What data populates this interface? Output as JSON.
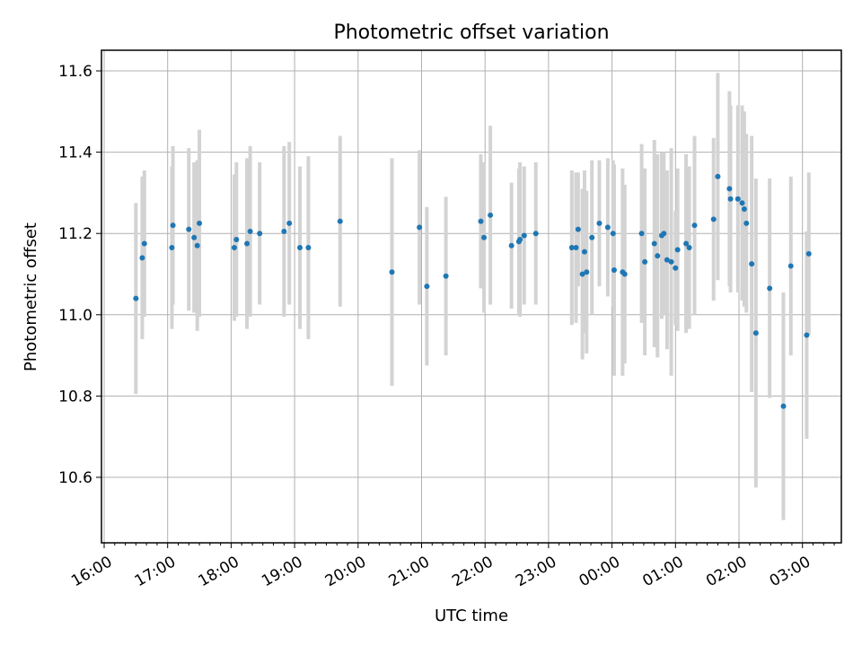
{
  "chart_data": {
    "type": "scatter",
    "title": "Photometric offset variation",
    "xlabel": "UTC time",
    "ylabel": "Photometric offset",
    "x_tick_labels": [
      "16:00",
      "17:00",
      "18:00",
      "19:00",
      "20:00",
      "21:00",
      "22:00",
      "23:00",
      "00:00",
      "01:00",
      "02:00",
      "03:00"
    ],
    "x_start_label": "16:00",
    "y_ticks": [
      10.6,
      10.8,
      11.0,
      11.2,
      11.4,
      11.6
    ],
    "y_tick_labels": [
      "10.6",
      "10.8",
      "11.0",
      "11.2",
      "11.4",
      "11.6"
    ],
    "ylim": [
      10.45,
      11.65
    ],
    "grid": true,
    "colors": {
      "point": "#1f77b4",
      "errorbar": "#d3d3d3",
      "grid": "#b0b0b0",
      "axes": "#000000"
    },
    "series": [
      {
        "x": [
          "16:30",
          "16:36",
          "16:38",
          "17:04",
          "17:05",
          "17:20",
          "17:25",
          "17:28",
          "17:30",
          "18:03",
          "18:05",
          "18:15",
          "18:18",
          "18:27",
          "18:50",
          "18:55",
          "19:05",
          "19:13",
          "19:43",
          "20:32",
          "20:58",
          "21:05",
          "21:23",
          "21:56",
          "21:59",
          "22:05",
          "22:25",
          "22:32",
          "22:33",
          "22:37",
          "22:48",
          "23:22",
          "23:26",
          "23:28",
          "23:32",
          "23:34",
          "23:36",
          "23:41",
          "23:48",
          "23:56",
          "00:01",
          "00:02",
          "00:10",
          "00:12",
          "00:28",
          "00:31",
          "00:40",
          "00:43",
          "00:47",
          "00:49",
          "00:52",
          "00:56",
          "01:00",
          "01:02",
          "01:10",
          "01:13",
          "01:18",
          "01:36",
          "01:40",
          "01:51",
          "01:52",
          "01:59",
          "02:03",
          "02:05",
          "02:07",
          "02:12",
          "02:16",
          "02:29",
          "02:42",
          "02:49",
          "03:04",
          "03:06"
        ],
        "y": [
          11.04,
          11.14,
          11.175,
          11.165,
          11.22,
          11.21,
          11.19,
          11.17,
          11.225,
          11.165,
          11.185,
          11.175,
          11.205,
          11.2,
          11.205,
          11.225,
          11.165,
          11.165,
          11.23,
          11.105,
          11.215,
          11.07,
          11.095,
          11.23,
          11.19,
          11.245,
          11.17,
          11.18,
          11.185,
          11.195,
          11.2,
          11.165,
          11.165,
          11.21,
          11.1,
          11.155,
          11.105,
          11.19,
          11.225,
          11.215,
          11.2,
          11.11,
          11.105,
          11.1,
          11.2,
          11.13,
          11.175,
          11.145,
          11.195,
          11.2,
          11.135,
          11.13,
          11.115,
          11.16,
          11.175,
          11.165,
          11.22,
          11.235,
          11.34,
          11.31,
          11.285,
          11.285,
          11.275,
          11.26,
          11.225,
          11.125,
          10.955,
          11.065,
          10.775,
          11.12,
          10.95,
          11.15
        ],
        "yerr": [
          0.235,
          0.2,
          0.18,
          0.2,
          0.195,
          0.2,
          0.185,
          0.21,
          0.23,
          0.18,
          0.19,
          0.21,
          0.21,
          0.175,
          0.21,
          0.2,
          0.2,
          0.225,
          0.21,
          0.28,
          0.19,
          0.195,
          0.195,
          0.165,
          0.185,
          0.22,
          0.155,
          0.18,
          0.19,
          0.17,
          0.175,
          0.19,
          0.185,
          0.14,
          0.21,
          0.2,
          0.2,
          0.19,
          0.155,
          0.17,
          0.18,
          0.26,
          0.255,
          0.22,
          0.22,
          0.23,
          0.255,
          0.25,
          0.205,
          0.2,
          0.22,
          0.28,
          0.14,
          0.2,
          0.22,
          0.2,
          0.22,
          0.2,
          0.255,
          0.24,
          0.23,
          0.23,
          0.24,
          0.24,
          0.22,
          0.315,
          0.38,
          0.27,
          0.28,
          0.22,
          0.255,
          0.2
        ]
      }
    ]
  }
}
